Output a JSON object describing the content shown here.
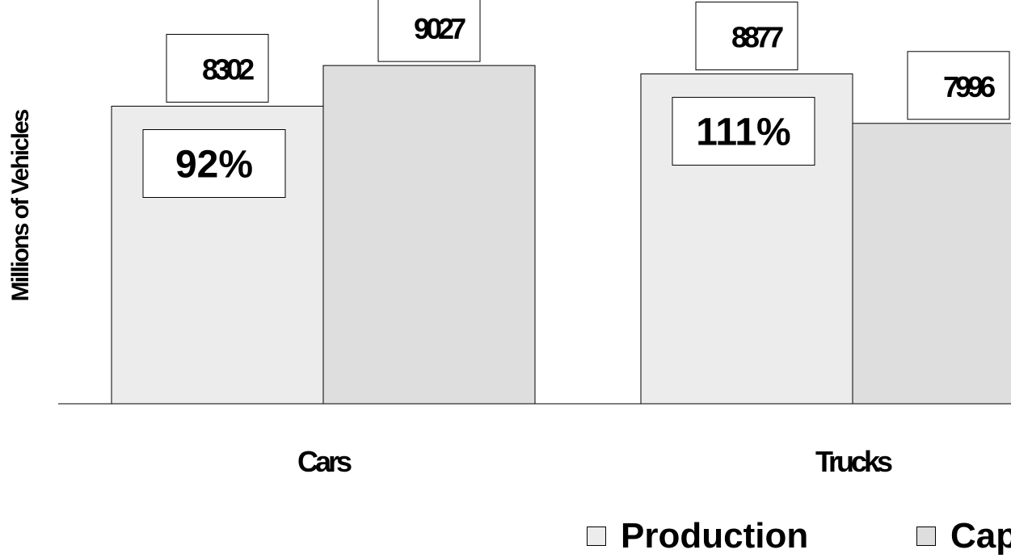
{
  "chart_data": {
    "type": "bar",
    "title": "",
    "xlabel": "",
    "ylabel": "Millions of Vehicles",
    "categories": [
      "Cars",
      "Trucks"
    ],
    "series": [
      {
        "name": "Production",
        "values": [
          8302,
          8877
        ],
        "color": "#ececec"
      },
      {
        "name": "Capacity",
        "values": [
          9027,
          7996
        ],
        "color": "#dedede"
      }
    ],
    "percent_labels": [
      "92%",
      "111%"
    ],
    "ylim": [
      0,
      10000
    ],
    "grid": false,
    "legend": "bottom"
  }
}
